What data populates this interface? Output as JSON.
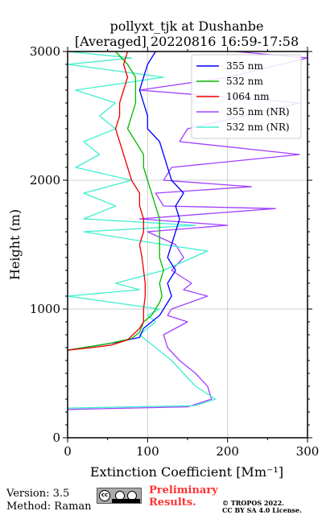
{
  "title_line1": "pollyxt_tjk at Dushanbe",
  "title_line2": "[Averaged] 20220816 16:59-17:58",
  "xlabel": "Extinction Coefficient [Mm⁻¹]",
  "ylabel": "Height (m)",
  "x_tick_labels": [
    "0",
    "100",
    "200",
    "300"
  ],
  "y_tick_labels": [
    "0",
    "1000",
    "2000",
    "3000"
  ],
  "legend_items": [
    {
      "label": "355 nm",
      "color": "#0000ff"
    },
    {
      "label": "532 nm",
      "color": "#00bb00"
    },
    {
      "label": "1064 nm",
      "color": "#ee0000"
    },
    {
      "label": "355 nm (NR)",
      "color": "#a040ff"
    },
    {
      "label": "532 nm (NR)",
      "color": "#40f0d0"
    }
  ],
  "footer": {
    "version": "Version: 3.5",
    "method": "Method: Raman",
    "cc_icon": "cc-by-sa-icon",
    "prelim_line1": "Preliminary",
    "prelim_line2": "Results.",
    "copyright_line1": "© TROPOS 2022.",
    "copyright_line2": "CC BY SA 4.0 License."
  },
  "chart_data": {
    "type": "line",
    "title": "pollyxt_tjk at Dushanbe [Averaged] 20220816 16:59-17:58",
    "xlabel": "Extinction Coefficient [Mm⁻¹]",
    "ylabel": "Height (m)",
    "xlim": [
      0,
      300
    ],
    "ylim": [
      0,
      3000
    ],
    "x_ticks": [
      0,
      100,
      200,
      300
    ],
    "y_ticks": [
      0,
      1000,
      2000,
      3000
    ],
    "grid": true,
    "legend_position": "top-right",
    "series": [
      {
        "name": "355 nm",
        "color": "#0000ff",
        "points": [
          [
            0,
            680
          ],
          [
            60,
            740
          ],
          [
            90,
            780
          ],
          [
            95,
            850
          ],
          [
            105,
            900
          ],
          [
            115,
            950
          ],
          [
            120,
            1000
          ],
          [
            125,
            1050
          ],
          [
            130,
            1100
          ],
          [
            125,
            1200
          ],
          [
            135,
            1300
          ],
          [
            125,
            1400
          ],
          [
            130,
            1500
          ],
          [
            135,
            1600
          ],
          [
            140,
            1700
          ],
          [
            135,
            1800
          ],
          [
            145,
            1900
          ],
          [
            130,
            2000
          ],
          [
            125,
            2100
          ],
          [
            120,
            2200
          ],
          [
            115,
            2300
          ],
          [
            100,
            2400
          ],
          [
            100,
            2500
          ],
          [
            95,
            2600
          ],
          [
            90,
            2700
          ],
          [
            95,
            2800
          ],
          [
            100,
            2900
          ],
          [
            110,
            3000
          ]
        ]
      },
      {
        "name": "532 nm",
        "color": "#00bb00",
        "points": [
          [
            0,
            680
          ],
          [
            50,
            730
          ],
          [
            80,
            770
          ],
          [
            90,
            820
          ],
          [
            95,
            900
          ],
          [
            105,
            950
          ],
          [
            110,
            1000
          ],
          [
            115,
            1050
          ],
          [
            118,
            1100
          ],
          [
            115,
            1200
          ],
          [
            120,
            1300
          ],
          [
            115,
            1400
          ],
          [
            115,
            1500
          ],
          [
            115,
            1600
          ],
          [
            115,
            1700
          ],
          [
            110,
            1800
          ],
          [
            105,
            1900
          ],
          [
            100,
            2000
          ],
          [
            95,
            2100
          ],
          [
            95,
            2200
          ],
          [
            85,
            2300
          ],
          [
            75,
            2400
          ],
          [
            80,
            2500
          ],
          [
            85,
            2600
          ],
          [
            85,
            2700
          ],
          [
            85,
            2800
          ],
          [
            75,
            2900
          ],
          [
            60,
            3000
          ]
        ]
      },
      {
        "name": "1064 nm",
        "color": "#ee0000",
        "points": [
          [
            0,
            680
          ],
          [
            30,
            700
          ],
          [
            55,
            720
          ],
          [
            75,
            760
          ],
          [
            90,
            850
          ],
          [
            95,
            900
          ],
          [
            95,
            1000
          ],
          [
            97,
            1100
          ],
          [
            97,
            1200
          ],
          [
            95,
            1300
          ],
          [
            93,
            1400
          ],
          [
            90,
            1500
          ],
          [
            95,
            1600
          ],
          [
            95,
            1700
          ],
          [
            90,
            1800
          ],
          [
            90,
            1900
          ],
          [
            80,
            2000
          ],
          [
            75,
            2100
          ],
          [
            70,
            2200
          ],
          [
            65,
            2300
          ],
          [
            60,
            2400
          ],
          [
            65,
            2500
          ],
          [
            65,
            2600
          ],
          [
            70,
            2700
          ],
          [
            75,
            2800
          ],
          [
            70,
            2900
          ],
          [
            75,
            3000
          ]
        ]
      },
      {
        "name": "355 nm (NR)",
        "color": "#a040ff",
        "points": [
          [
            0,
            220
          ],
          [
            150,
            240
          ],
          [
            180,
            300
          ],
          [
            175,
            400
          ],
          [
            160,
            500
          ],
          [
            140,
            600
          ],
          [
            125,
            700
          ],
          [
            120,
            800
          ],
          [
            150,
            900
          ],
          [
            125,
            950
          ],
          [
            130,
            1000
          ],
          [
            175,
            1100
          ],
          [
            145,
            1150
          ],
          [
            155,
            1200
          ],
          [
            130,
            1300
          ],
          [
            145,
            1400
          ],
          [
            135,
            1500
          ],
          [
            100,
            1600
          ],
          [
            200,
            1650
          ],
          [
            90,
            1700
          ],
          [
            260,
            1780
          ],
          [
            120,
            1800
          ],
          [
            110,
            1900
          ],
          [
            230,
            1950
          ],
          [
            120,
            2000
          ],
          [
            130,
            2100
          ],
          [
            290,
            2200
          ],
          [
            140,
            2300
          ],
          [
            150,
            2400
          ],
          [
            290,
            2600
          ],
          [
            90,
            2700
          ],
          [
            200,
            2800
          ],
          [
            300,
            2950
          ],
          [
            210,
            3000
          ]
        ]
      },
      {
        "name": "532 nm (NR)",
        "color": "#40f0d0",
        "points": [
          [
            0,
            230
          ],
          [
            160,
            250
          ],
          [
            185,
            300
          ],
          [
            160,
            400
          ],
          [
            145,
            500
          ],
          [
            130,
            600
          ],
          [
            110,
            700
          ],
          [
            90,
            800
          ],
          [
            110,
            900
          ],
          [
            100,
            950
          ],
          [
            115,
            1000
          ],
          [
            0,
            1100
          ],
          [
            90,
            1150
          ],
          [
            60,
            1200
          ],
          [
            120,
            1300
          ],
          [
            175,
            1450
          ],
          [
            120,
            1500
          ],
          [
            20,
            1600
          ],
          [
            160,
            1650
          ],
          [
            20,
            1700
          ],
          [
            60,
            1800
          ],
          [
            20,
            1900
          ],
          [
            80,
            2000
          ],
          [
            10,
            2100
          ],
          [
            40,
            2200
          ],
          [
            20,
            2300
          ],
          [
            60,
            2400
          ],
          [
            40,
            2500
          ],
          [
            60,
            2600
          ],
          [
            10,
            2700
          ],
          [
            120,
            2800
          ],
          [
            0,
            2900
          ],
          [
            80,
            2950
          ],
          [
            0,
            3000
          ]
        ]
      }
    ]
  }
}
